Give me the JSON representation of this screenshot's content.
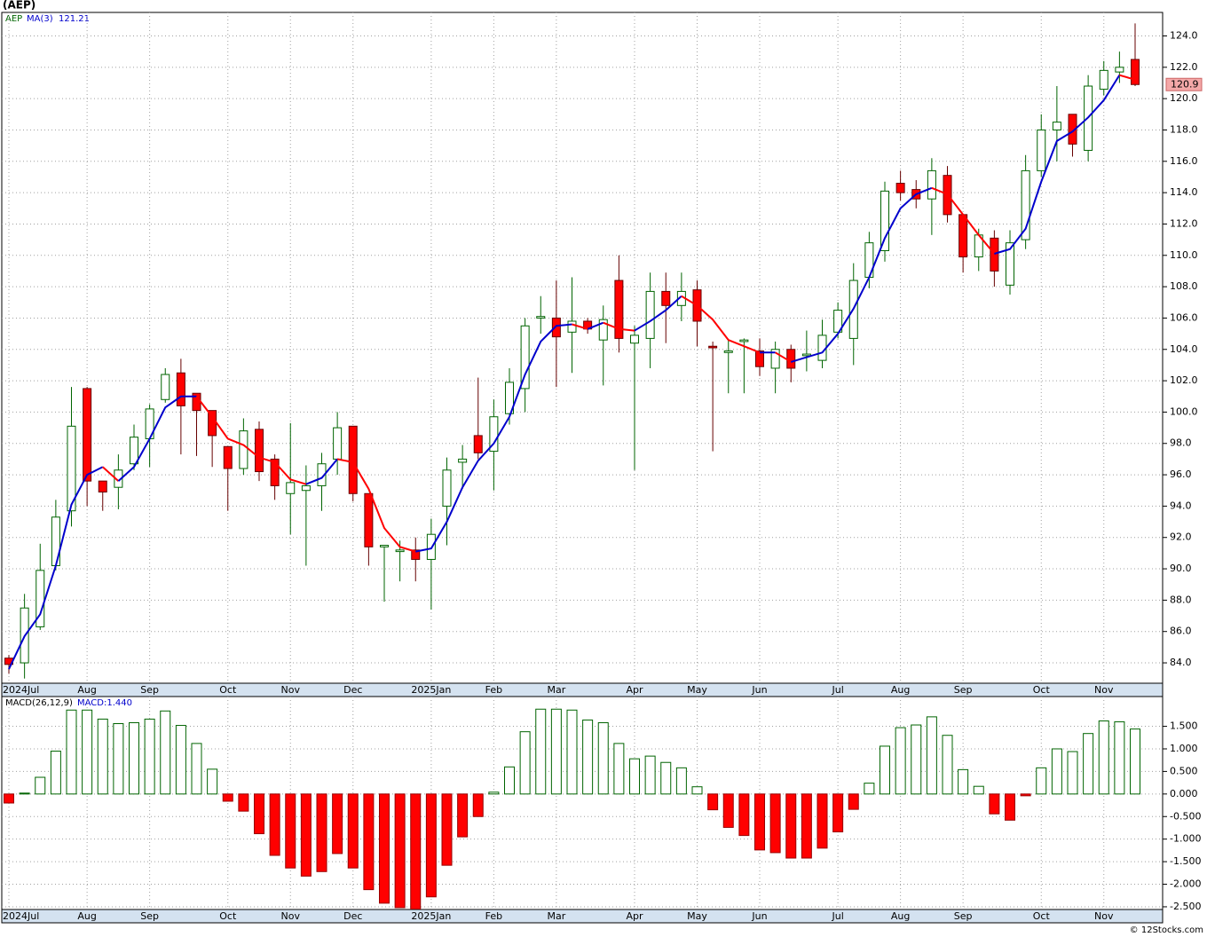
{
  "footer": "© 12Stocks.com",
  "chart_data": [
    {
      "type": "candlestick",
      "title": "(AEP)",
      "symbol": "AEP",
      "categories": [
        "2024Jul",
        null,
        null,
        null,
        null,
        "Aug",
        null,
        null,
        null,
        "Sep",
        null,
        null,
        null,
        null,
        "Oct",
        null,
        null,
        null,
        "Nov",
        null,
        null,
        null,
        "Dec",
        null,
        null,
        null,
        null,
        "2025Jan",
        null,
        null,
        null,
        "Feb",
        null,
        null,
        null,
        "Mar",
        null,
        null,
        null,
        null,
        "Apr",
        null,
        null,
        null,
        "May",
        null,
        null,
        null,
        "Jun",
        null,
        null,
        null,
        null,
        "Jul",
        null,
        null,
        null,
        "Aug",
        null,
        null,
        null,
        "Sep",
        null,
        null,
        null,
        null,
        "Oct",
        null,
        null,
        null,
        "Nov",
        null,
        null
      ],
      "open": [
        84.3,
        84.0,
        86.3,
        90.2,
        93.7,
        101.5,
        95.6,
        95.2,
        96.7,
        98.3,
        100.8,
        102.5,
        101.2,
        100.1,
        97.8,
        96.4,
        98.9,
        97.0,
        94.8,
        95.0,
        95.3,
        97.0,
        99.1,
        94.8,
        91.4,
        91.1,
        91.2,
        90.6,
        94.0,
        96.8,
        98.5,
        97.5,
        99.9,
        101.5,
        106.0,
        106.0,
        105.1,
        105.8,
        104.6,
        108.4,
        104.4,
        104.7,
        107.7,
        106.8,
        107.8,
        104.2,
        103.8,
        104.5,
        103.9,
        102.8,
        104.0,
        103.6,
        103.3,
        105.1,
        104.7,
        108.6,
        110.3,
        114.6,
        114.2,
        113.6,
        115.1,
        112.6,
        109.9,
        111.1,
        108.1,
        111.0,
        115.4,
        118.0,
        119.0,
        116.7,
        120.6,
        121.7,
        122.5
      ],
      "high": [
        84.5,
        88.4,
        91.6,
        94.4,
        101.6,
        101.6,
        95.6,
        97.3,
        99.2,
        100.5,
        102.8,
        103.4,
        101.2,
        100.1,
        97.8,
        99.6,
        99.4,
        97.3,
        99.3,
        96.6,
        97.4,
        100.0,
        99.1,
        94.8,
        91.5,
        91.8,
        92.0,
        93.2,
        97.1,
        97.9,
        102.2,
        100.8,
        102.8,
        106.0,
        107.4,
        108.4,
        108.6,
        106.0,
        106.8,
        110.0,
        105.5,
        108.9,
        108.9,
        108.9,
        108.4,
        104.5,
        104.6,
        104.7,
        104.7,
        104.5,
        104.3,
        105.2,
        105.9,
        107.0,
        109.5,
        111.5,
        114.7,
        115.4,
        114.8,
        116.2,
        115.7,
        112.6,
        111.7,
        111.6,
        111.6,
        116.4,
        119.0,
        120.8,
        119.0,
        121.5,
        122.4,
        123.0,
        124.8
      ],
      "low": [
        83.3,
        83.0,
        86.1,
        89.9,
        92.7,
        94.0,
        93.7,
        93.8,
        96.3,
        96.5,
        100.6,
        97.3,
        97.2,
        96.5,
        93.7,
        96.0,
        95.6,
        94.4,
        92.2,
        90.2,
        93.7,
        96.0,
        94.3,
        90.2,
        87.9,
        89.2,
        89.2,
        87.4,
        91.5,
        95.1,
        97.0,
        95.0,
        99.2,
        100.0,
        105.0,
        101.6,
        102.5,
        105.0,
        101.7,
        103.8,
        96.3,
        102.8,
        104.4,
        105.8,
        104.2,
        97.5,
        101.2,
        101.2,
        102.3,
        101.2,
        101.9,
        102.6,
        102.8,
        104.7,
        103.0,
        107.9,
        109.6,
        113.5,
        113.0,
        111.3,
        112.1,
        108.9,
        109.0,
        108.0,
        107.5,
        110.4,
        115.0,
        116.0,
        116.3,
        116.0,
        120.2,
        121.0,
        120.8
      ],
      "close": [
        83.9,
        87.5,
        89.9,
        93.3,
        99.1,
        95.6,
        94.9,
        96.3,
        98.4,
        100.2,
        102.4,
        100.4,
        100.1,
        98.5,
        96.4,
        98.8,
        96.2,
        95.3,
        95.5,
        95.3,
        96.7,
        99.0,
        94.8,
        91.4,
        91.5,
        91.2,
        90.6,
        92.2,
        96.3,
        97.0,
        97.4,
        99.7,
        101.9,
        105.5,
        106.1,
        104.8,
        105.8,
        105.3,
        105.9,
        104.7,
        104.9,
        107.7,
        106.8,
        107.7,
        105.8,
        104.1,
        103.9,
        104.6,
        102.9,
        104.0,
        102.8,
        103.7,
        104.9,
        106.5,
        108.4,
        110.8,
        114.1,
        114.0,
        113.6,
        115.4,
        112.6,
        109.9,
        111.3,
        109.0,
        110.8,
        115.4,
        118.0,
        118.5,
        117.1,
        120.8,
        121.8,
        122.0,
        120.9
      ],
      "ma": {
        "name": "MA(3)",
        "values": [
          83.6,
          85.7,
          87.1,
          90.2,
          94.1,
          96.0,
          96.5,
          95.6,
          96.5,
          98.3,
          100.3,
          101.0,
          101.0,
          99.7,
          98.3,
          97.9,
          97.1,
          96.8,
          95.7,
          95.4,
          95.8,
          97.0,
          96.8,
          95.1,
          92.6,
          91.4,
          91.1,
          91.3,
          93.0,
          95.2,
          96.9,
          98.0,
          99.7,
          102.4,
          104.5,
          105.5,
          105.6,
          105.3,
          105.7,
          105.3,
          105.2,
          105.8,
          106.5,
          107.4,
          106.8,
          105.9,
          104.6,
          104.2,
          103.8,
          103.8,
          103.2,
          103.5,
          103.8,
          105.0,
          106.6,
          108.6,
          111.1,
          113.0,
          113.9,
          114.3,
          113.9,
          112.6,
          111.3,
          110.1,
          110.4,
          111.7,
          114.7,
          117.3,
          117.9,
          118.8,
          119.9,
          121.5,
          121.21
        ]
      },
      "up_color": "#006400",
      "down_color": "#ff0000",
      "ma_up_color": "#0000cc",
      "ma_down_color": "#ff0000",
      "last_color": "#f4a8a8",
      "ylim": [
        82.7,
        125.5
      ],
      "yticks": [
        {
          "value": 84,
          "label": "84.0"
        },
        {
          "value": 86,
          "label": "86.0"
        },
        {
          "value": 88,
          "label": "88.0"
        },
        {
          "value": 90,
          "label": "90.0"
        },
        {
          "value": 92,
          "label": "92.0"
        },
        {
          "value": 94,
          "label": "94.0"
        },
        {
          "value": 96,
          "label": "96.0"
        },
        {
          "value": 98,
          "label": "98.0"
        },
        {
          "value": 100,
          "label": "100.0"
        },
        {
          "value": 102,
          "label": "102.0"
        },
        {
          "value": 104,
          "label": "104.0"
        },
        {
          "value": 106,
          "label": "106.0"
        },
        {
          "value": 108,
          "label": "108.0"
        },
        {
          "value": 110,
          "label": "110.0"
        },
        {
          "value": 112,
          "label": "112.0"
        },
        {
          "value": 114,
          "label": "114.0"
        },
        {
          "value": 116,
          "label": "116.0"
        },
        {
          "value": 118,
          "label": "118.0"
        },
        {
          "value": 120,
          "label": "120.0"
        },
        {
          "value": 122,
          "label": "122.0"
        },
        {
          "value": 124,
          "label": "124.0"
        }
      ],
      "grid": true
    },
    {
      "type": "bar",
      "title": "MACD(26,12,9)",
      "value_text": "MACD:1.440",
      "categories": [
        "2024Jul",
        null,
        null,
        null,
        null,
        "Aug",
        null,
        null,
        null,
        "Sep",
        null,
        null,
        null,
        null,
        "Oct",
        null,
        null,
        null,
        "Nov",
        null,
        null,
        null,
        "Dec",
        null,
        null,
        null,
        null,
        "2025Jan",
        null,
        null,
        null,
        "Feb",
        null,
        null,
        null,
        "Mar",
        null,
        null,
        null,
        null,
        "Apr",
        null,
        null,
        null,
        "May",
        null,
        null,
        null,
        "Jun",
        null,
        null,
        null,
        null,
        "Jul",
        null,
        null,
        null,
        "Aug",
        null,
        null,
        null,
        "Sep",
        null,
        null,
        null,
        null,
        "Oct",
        null,
        null,
        null,
        "Nov",
        null,
        null
      ],
      "values": [
        -0.2,
        0.02,
        0.37,
        0.95,
        1.86,
        1.86,
        1.66,
        1.56,
        1.58,
        1.66,
        1.84,
        1.52,
        1.12,
        0.55,
        -0.16,
        -0.38,
        -0.88,
        -1.36,
        -1.64,
        -1.82,
        -1.72,
        -1.32,
        -1.64,
        -2.12,
        -2.42,
        -2.52,
        -2.55,
        -2.28,
        -1.58,
        -0.95,
        -0.5,
        0.04,
        0.6,
        1.38,
        1.88,
        1.88,
        1.86,
        1.64,
        1.58,
        1.12,
        0.78,
        0.84,
        0.7,
        0.58,
        0.16,
        -0.35,
        -0.74,
        -0.92,
        -1.24,
        -1.3,
        -1.42,
        -1.42,
        -1.2,
        -0.84,
        -0.34,
        0.24,
        1.06,
        1.47,
        1.53,
        1.71,
        1.3,
        0.54,
        0.17,
        -0.44,
        -0.58,
        -0.04,
        0.58,
        1.0,
        0.94,
        1.34,
        1.62,
        1.6,
        1.44
      ],
      "up_color": "#006400",
      "down_color": "#ff0000",
      "text_color": "#0000cc",
      "ylim": [
        -2.56,
        2.16
      ],
      "yticks": [
        {
          "value": 1.5,
          "label": "1.500"
        },
        {
          "value": 1,
          "label": "1.000"
        },
        {
          "value": 0.5,
          "label": "0.500"
        },
        {
          "value": 0,
          "label": "0.000"
        },
        {
          "value": -0.5,
          "label": "-0.500"
        },
        {
          "value": -1,
          "label": "-1.000"
        },
        {
          "value": -1.5,
          "label": "-1.500"
        },
        {
          "value": -2,
          "label": "-2.000"
        },
        {
          "value": -2.5,
          "label": "-2.500"
        }
      ],
      "grid": true
    }
  ]
}
